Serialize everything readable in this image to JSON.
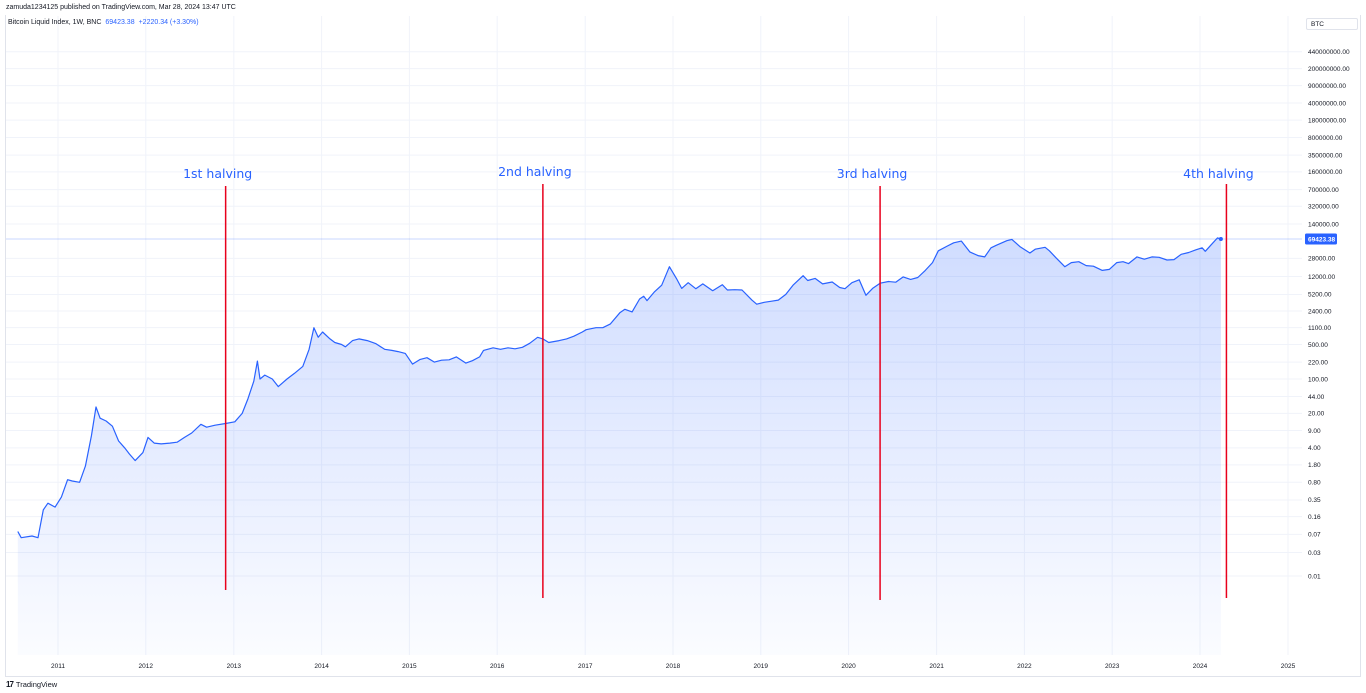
{
  "header": {
    "published": "zamuda1234125 published on TradingView.com, Mar 28, 2024 13:47 UTC"
  },
  "legend": {
    "symbol": "Bitcoin Liquid Index, 1W, BNC",
    "value": "69423.38",
    "change": "+2220.34 (+3.30%)"
  },
  "badge": {
    "label": "BTC"
  },
  "footer": {
    "logo_glyph": "17",
    "brand": "TradingView"
  },
  "colors": {
    "line": "#2962ff",
    "fill": "#2962ff",
    "halving": "#e8001c",
    "grid": "#f0f3fa",
    "price_label_bg": "#2962ff"
  },
  "chart_data": {
    "type": "area",
    "title": "Bitcoin Liquid Index, 1W, BNC",
    "y_scale": "log",
    "y_tick_labels": [
      "440000000.00",
      "200000000.00",
      "90000000.00",
      "40000000.00",
      "18000000.00",
      "8000000.00",
      "3500000.00",
      "1600000.00",
      "700000.00",
      "320000.00",
      "140000.00",
      "28000.00",
      "12000.00",
      "5200.00",
      "2400.00",
      "1100.00",
      "500.00",
      "220.00",
      "100.00",
      "44.00",
      "20.00",
      "9.00",
      "4.00",
      "1.80",
      "0.80",
      "0.35",
      "0.16",
      "0.07",
      "0.03",
      "0.01"
    ],
    "x_tick_labels": [
      "2011",
      "2012",
      "2013",
      "2014",
      "2015",
      "2016",
      "2017",
      "2018",
      "2019",
      "2020",
      "2021",
      "2022",
      "2023",
      "2024",
      "2025"
    ],
    "last_price_label": "69423.38",
    "series": [
      {
        "x": [
          "2010-07-18",
          "2010-08-01",
          "2010-09-15",
          "2010-10-10",
          "2010-11-01",
          "2010-11-20",
          "2010-12-20",
          "2011-01-15",
          "2011-02-10",
          "2011-03-01",
          "2011-04-01",
          "2011-04-25",
          "2011-05-20",
          "2011-06-08",
          "2011-06-25",
          "2011-07-20",
          "2011-08-15",
          "2011-09-10",
          "2011-10-05",
          "2011-10-25",
          "2011-11-18",
          "2011-12-20",
          "2012-01-10",
          "2012-02-05",
          "2012-03-05",
          "2012-04-10",
          "2012-05-10",
          "2012-06-10",
          "2012-07-10",
          "2012-08-17",
          "2012-09-10",
          "2012-10-15",
          "2012-11-28",
          "2013-01-05",
          "2013-02-05",
          "2013-03-01",
          "2013-03-25",
          "2013-04-09",
          "2013-04-20",
          "2013-05-10",
          "2013-06-10",
          "2013-07-05",
          "2013-08-10",
          "2013-09-10",
          "2013-10-15",
          "2013-11-10",
          "2013-11-30",
          "2013-12-18",
          "2014-01-05",
          "2014-02-05",
          "2014-02-25",
          "2014-03-25",
          "2014-04-10",
          "2014-05-10",
          "2014-06-05",
          "2014-07-10",
          "2014-08-15",
          "2014-09-20",
          "2014-10-20",
          "2014-11-15",
          "2014-12-15",
          "2015-01-14",
          "2015-02-15",
          "2015-03-15",
          "2015-04-15",
          "2015-05-15",
          "2015-06-15",
          "2015-07-15",
          "2015-08-24",
          "2015-09-20",
          "2015-10-20",
          "2015-11-05",
          "2015-12-15",
          "2016-01-15",
          "2016-02-15",
          "2016-03-15",
          "2016-04-15",
          "2016-05-15",
          "2016-06-17",
          "2016-07-09",
          "2016-08-02",
          "2016-09-15",
          "2016-10-15",
          "2016-11-15",
          "2016-12-20",
          "2017-01-05",
          "2017-02-15",
          "2017-03-15",
          "2017-04-15",
          "2017-05-25",
          "2017-06-15",
          "2017-07-15",
          "2017-08-15",
          "2017-09-01",
          "2017-09-15",
          "2017-10-15",
          "2017-11-15",
          "2017-12-17",
          "2018-01-15",
          "2018-02-06",
          "2018-03-05",
          "2018-04-06",
          "2018-05-05",
          "2018-06-15",
          "2018-07-25",
          "2018-08-15",
          "2018-09-15",
          "2018-10-15",
          "2018-11-25",
          "2018-12-15",
          "2019-01-15",
          "2019-02-15",
          "2019-03-15",
          "2019-04-15",
          "2019-05-15",
          "2019-06-26",
          "2019-07-15",
          "2019-08-15",
          "2019-09-15",
          "2019-10-25",
          "2019-11-25",
          "2019-12-17",
          "2020-01-15",
          "2020-02-14",
          "2020-03-13",
          "2020-04-10",
          "2020-05-11",
          "2020-06-15",
          "2020-07-15",
          "2020-08-15",
          "2020-09-15",
          "2020-10-15",
          "2020-11-15",
          "2020-12-15",
          "2021-01-08",
          "2021-02-15",
          "2021-03-13",
          "2021-04-14",
          "2021-05-19",
          "2021-06-22",
          "2021-07-20",
          "2021-08-15",
          "2021-09-07",
          "2021-10-20",
          "2021-11-10",
          "2021-12-15",
          "2022-01-24",
          "2022-02-15",
          "2022-03-28",
          "2022-04-15",
          "2022-05-12",
          "2022-06-18",
          "2022-07-15",
          "2022-08-15",
          "2022-09-15",
          "2022-10-15",
          "2022-11-21",
          "2022-12-20",
          "2023-01-20",
          "2023-02-15",
          "2023-03-10",
          "2023-04-14",
          "2023-05-15",
          "2023-06-15",
          "2023-07-15",
          "2023-08-17",
          "2023-09-15",
          "2023-10-15",
          "2023-11-15",
          "2023-12-15",
          "2024-01-10",
          "2024-01-23",
          "2024-02-15",
          "2024-03-14",
          "2024-03-28"
        ],
        "y": [
          0.08,
          0.06,
          0.065,
          0.06,
          0.22,
          0.3,
          0.25,
          0.4,
          0.9,
          0.85,
          0.8,
          1.7,
          7.0,
          27.0,
          16.0,
          14.0,
          11.0,
          5.5,
          4.0,
          3.0,
          2.2,
          3.2,
          6.5,
          5.0,
          4.8,
          5.0,
          5.2,
          6.5,
          8.0,
          12.0,
          10.5,
          11.5,
          12.5,
          13.5,
          20.0,
          40.0,
          90.0,
          230.0,
          100.0,
          120.0,
          100.0,
          70.0,
          100.0,
          130.0,
          180.0,
          400.0,
          1100.0,
          700.0,
          900.0,
          650.0,
          550.0,
          500.0,
          450.0,
          600.0,
          650.0,
          600.0,
          520.0,
          400.0,
          380.0,
          360.0,
          330.0,
          200.0,
          250.0,
          270.0,
          220.0,
          240.0,
          245.0,
          280.0,
          210.0,
          235.0,
          280.0,
          380.0,
          430.0,
          400.0,
          430.0,
          410.0,
          440.0,
          530.0,
          700.0,
          650.0,
          550.0,
          600.0,
          650.0,
          740.0,
          900.0,
          1000.0,
          1100.0,
          1100.0,
          1300.0,
          2200.0,
          2600.0,
          2300.0,
          4200.0,
          4800.0,
          3900.0,
          5800.0,
          8000.0,
          19000.0,
          11000.0,
          6900.0,
          9000.0,
          6800.0,
          8500.0,
          6200.0,
          8200.0,
          6400.0,
          6500.0,
          6400.0,
          4000.0,
          3300.0,
          3600.0,
          3800.0,
          4000.0,
          5200.0,
          8000.0,
          12500.0,
          10000.0,
          11000.0,
          8500.0,
          9300.0,
          7200.0,
          6800.0,
          9000.0,
          10300.0,
          5000.0,
          6900.0,
          8800.0,
          9500.0,
          9200.0,
          11800.0,
          10500.0,
          11500.0,
          16000.0,
          23000.0,
          40000.0,
          50000.0,
          58000.0,
          63000.0,
          38000.0,
          32000.0,
          30000.0,
          46000.0,
          52000.0,
          64000.0,
          68000.0,
          48000.0,
          36000.0,
          43000.0,
          47000.0,
          40000.0,
          29000.0,
          19000.0,
          23000.0,
          24000.0,
          20000.0,
          19500.0,
          16000.0,
          16800.0,
          23000.0,
          24000.0,
          22000.0,
          30000.0,
          27000.0,
          30000.0,
          29500.0,
          26000.0,
          26500.0,
          34000.0,
          37000.0,
          42000.0,
          46000.0,
          39000.0,
          52000.0,
          73000.0,
          69423.38
        ]
      }
    ],
    "annotations": [
      {
        "label": "1st halving",
        "date": "2012-11-28"
      },
      {
        "label": "2nd halving",
        "date": "2016-07-09"
      },
      {
        "label": "3rd halving",
        "date": "2020-05-11"
      },
      {
        "label": "4th halving",
        "date": "2024-04-20"
      }
    ]
  }
}
